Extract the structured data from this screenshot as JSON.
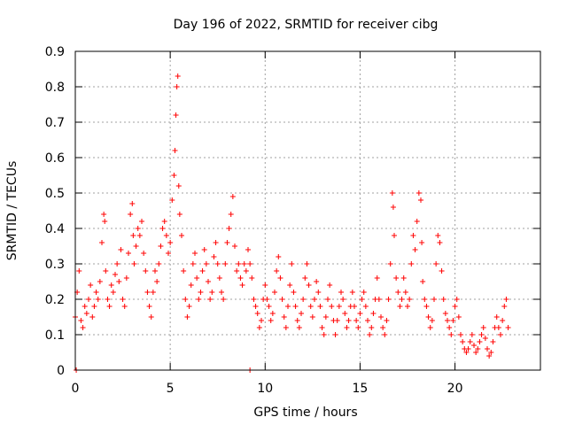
{
  "chart_data": {
    "type": "scatter",
    "title": "Day 196 of 2022, SRMTID for receiver cibg",
    "xlabel": "GPS time / hours",
    "ylabel": "SRMTID / TECUs",
    "xlim": [
      0,
      24.5
    ],
    "ylim": [
      0,
      0.9
    ],
    "xticks": [
      0,
      5,
      10,
      15,
      20
    ],
    "yticks": [
      0,
      0.1,
      0.2,
      0.3,
      0.4,
      0.5,
      0.6,
      0.7,
      0.8,
      0.9
    ],
    "xtick_labels": [
      "0",
      "5",
      "10",
      "15",
      "20"
    ],
    "ytick_labels": [
      "0",
      "0.1",
      "0.2",
      "0.3",
      "0.4",
      "0.5",
      "0.6",
      "0.7",
      "0.8",
      "0.9"
    ],
    "grid": true,
    "marker": "+",
    "color": "#ff0000",
    "series": [
      {
        "name": "SRMTID",
        "x": [
          0.0,
          0.1,
          0.2,
          0.3,
          0.4,
          0.5,
          0.6,
          0.7,
          0.8,
          0.9,
          1.0,
          1.1,
          1.2,
          1.3,
          1.4,
          1.5,
          1.55,
          1.6,
          1.7,
          1.8,
          1.9,
          2.0,
          2.1,
          2.2,
          2.3,
          2.4,
          2.5,
          2.6,
          2.7,
          2.8,
          2.9,
          3.0,
          3.05,
          3.1,
          3.2,
          3.3,
          3.4,
          3.5,
          3.6,
          3.7,
          3.8,
          3.9,
          4.0,
          4.1,
          4.2,
          4.3,
          4.4,
          4.5,
          4.6,
          4.7,
          4.8,
          4.9,
          5.0,
          5.1,
          5.2,
          5.25,
          5.3,
          5.35,
          5.4,
          5.45,
          5.5,
          5.6,
          5.7,
          5.8,
          5.9,
          6.0,
          6.1,
          6.2,
          6.3,
          6.4,
          6.5,
          6.6,
          6.7,
          6.8,
          6.9,
          7.0,
          7.1,
          7.2,
          7.3,
          7.4,
          7.5,
          7.6,
          7.7,
          7.8,
          7.9,
          8.0,
          8.1,
          8.2,
          8.3,
          8.4,
          8.5,
          8.6,
          8.7,
          8.8,
          8.9,
          9.0,
          9.1,
          9.2,
          9.3,
          9.4,
          9.5,
          9.6,
          9.7,
          9.8,
          9.9,
          10.0,
          10.1,
          10.2,
          10.3,
          10.4,
          10.5,
          10.6,
          10.7,
          10.8,
          10.9,
          11.0,
          11.1,
          11.2,
          11.3,
          11.4,
          11.5,
          11.6,
          11.7,
          11.8,
          11.9,
          12.0,
          12.1,
          12.2,
          12.3,
          12.4,
          12.5,
          12.6,
          12.7,
          12.8,
          12.9,
          13.0,
          13.1,
          13.2,
          13.3,
          13.4,
          13.5,
          13.6,
          13.7,
          13.8,
          13.9,
          14.0,
          14.1,
          14.2,
          14.3,
          14.4,
          14.5,
          14.6,
          14.7,
          14.8,
          14.9,
          15.0,
          15.1,
          15.2,
          15.3,
          15.4,
          15.5,
          15.6,
          15.7,
          15.8,
          15.9,
          16.0,
          16.1,
          16.2,
          16.3,
          16.4,
          16.5,
          16.6,
          16.7,
          16.75,
          16.8,
          16.9,
          17.0,
          17.1,
          17.2,
          17.3,
          17.4,
          17.5,
          17.6,
          17.7,
          17.8,
          17.9,
          18.0,
          18.1,
          18.2,
          18.25,
          18.3,
          18.4,
          18.5,
          18.6,
          18.7,
          18.8,
          18.9,
          19.0,
          19.1,
          19.2,
          19.3,
          19.4,
          19.5,
          19.6,
          19.7,
          19.8,
          19.9,
          20.0,
          20.1,
          20.2,
          20.3,
          20.4,
          20.5,
          20.6,
          20.7,
          20.8,
          20.9,
          21.0,
          21.1,
          21.2,
          21.3,
          21.4,
          21.5,
          21.6,
          21.7,
          21.8,
          21.9,
          22.0,
          22.1,
          22.2,
          22.3,
          22.4,
          22.5,
          22.6,
          22.7,
          22.8,
          0.05,
          9.2
        ],
        "y": [
          0.15,
          0.22,
          0.28,
          0.14,
          0.12,
          0.18,
          0.16,
          0.2,
          0.24,
          0.15,
          0.18,
          0.22,
          0.2,
          0.25,
          0.36,
          0.44,
          0.42,
          0.28,
          0.2,
          0.18,
          0.24,
          0.22,
          0.27,
          0.3,
          0.25,
          0.34,
          0.2,
          0.18,
          0.26,
          0.33,
          0.44,
          0.47,
          0.38,
          0.3,
          0.35,
          0.4,
          0.38,
          0.42,
          0.33,
          0.28,
          0.22,
          0.18,
          0.15,
          0.22,
          0.28,
          0.25,
          0.3,
          0.35,
          0.4,
          0.42,
          0.38,
          0.33,
          0.36,
          0.48,
          0.55,
          0.62,
          0.72,
          0.8,
          0.83,
          0.52,
          0.44,
          0.38,
          0.28,
          0.2,
          0.15,
          0.18,
          0.24,
          0.3,
          0.33,
          0.26,
          0.2,
          0.22,
          0.28,
          0.34,
          0.3,
          0.25,
          0.2,
          0.22,
          0.32,
          0.36,
          0.3,
          0.26,
          0.22,
          0.2,
          0.3,
          0.36,
          0.4,
          0.44,
          0.49,
          0.35,
          0.28,
          0.3,
          0.26,
          0.24,
          0.3,
          0.28,
          0.34,
          0.3,
          0.26,
          0.2,
          0.18,
          0.16,
          0.12,
          0.14,
          0.2,
          0.24,
          0.2,
          0.18,
          0.14,
          0.16,
          0.22,
          0.28,
          0.32,
          0.26,
          0.2,
          0.15,
          0.12,
          0.18,
          0.24,
          0.3,
          0.22,
          0.18,
          0.14,
          0.12,
          0.16,
          0.2,
          0.26,
          0.3,
          0.24,
          0.18,
          0.15,
          0.2,
          0.25,
          0.22,
          0.18,
          0.12,
          0.1,
          0.15,
          0.2,
          0.24,
          0.18,
          0.14,
          0.1,
          0.14,
          0.18,
          0.22,
          0.2,
          0.16,
          0.12,
          0.14,
          0.18,
          0.22,
          0.18,
          0.14,
          0.12,
          0.16,
          0.2,
          0.22,
          0.18,
          0.14,
          0.1,
          0.12,
          0.16,
          0.2,
          0.26,
          0.2,
          0.15,
          0.12,
          0.1,
          0.14,
          0.2,
          0.3,
          0.5,
          0.46,
          0.38,
          0.26,
          0.22,
          0.18,
          0.2,
          0.26,
          0.22,
          0.18,
          0.2,
          0.3,
          0.38,
          0.34,
          0.42,
          0.5,
          0.48,
          0.36,
          0.25,
          0.2,
          0.18,
          0.15,
          0.12,
          0.14,
          0.2,
          0.3,
          0.38,
          0.36,
          0.28,
          0.2,
          0.16,
          0.14,
          0.12,
          0.1,
          0.14,
          0.18,
          0.2,
          0.15,
          0.1,
          0.08,
          0.06,
          0.05,
          0.06,
          0.08,
          0.1,
          0.07,
          0.05,
          0.06,
          0.08,
          0.1,
          0.12,
          0.09,
          0.06,
          0.04,
          0.05,
          0.08,
          0.12,
          0.15,
          0.12,
          0.1,
          0.14,
          0.18,
          0.2,
          0.12,
          0.0,
          0.0
        ]
      }
    ]
  }
}
